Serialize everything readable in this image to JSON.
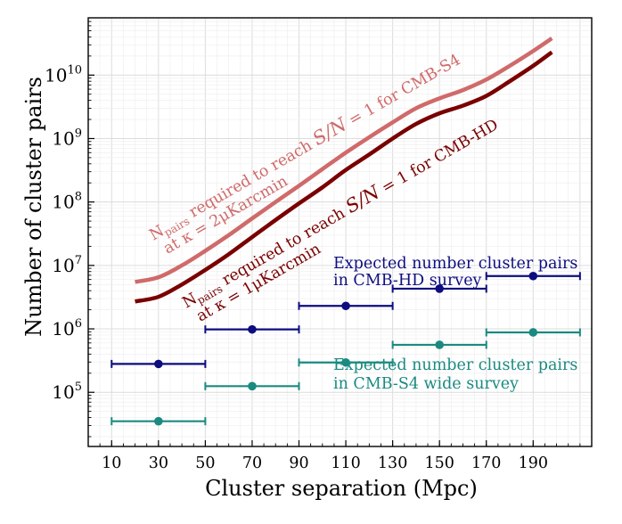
{
  "chart_data": {
    "type": "scatter",
    "title": "",
    "xlabel": "Cluster separation (Mpc)",
    "ylabel": "Number of cluster pairs",
    "x_scale": "linear",
    "y_scale": "log",
    "xlim": [
      0,
      215
    ],
    "ylim": [
      14000,
      80000000000
    ],
    "xticks": [
      10,
      30,
      50,
      70,
      90,
      110,
      130,
      150,
      170,
      190
    ],
    "yticks": [
      {
        "value": 100000,
        "base": "10",
        "exp": "5"
      },
      {
        "value": 1000000,
        "base": "10",
        "exp": "6"
      },
      {
        "value": 10000000,
        "base": "10",
        "exp": "7"
      },
      {
        "value": 100000000,
        "base": "10",
        "exp": "8"
      },
      {
        "value": 1000000000,
        "base": "10",
        "exp": "9"
      },
      {
        "value": 10000000000,
        "base": "10",
        "exp": "10"
      }
    ],
    "grid": true,
    "legend": "none",
    "curves": [
      {
        "id": "s4-curve",
        "color": "#d06a6a",
        "x": [
          20,
          30,
          40,
          50,
          60,
          70,
          80,
          90,
          100,
          110,
          120,
          130,
          140,
          150,
          160,
          170,
          180,
          190,
          198
        ],
        "y": [
          5500000,
          6500000,
          10000000,
          17000000,
          30000000,
          55000000,
          100000000,
          180000000,
          330000000,
          600000000,
          1050000000,
          1800000000,
          3000000000,
          4300000000,
          5800000000,
          8500000000,
          14000000000,
          24000000000,
          38000000000
        ]
      },
      {
        "id": "hd-curve",
        "color": "#7a0000",
        "x": [
          20,
          30,
          40,
          50,
          60,
          70,
          80,
          90,
          100,
          110,
          120,
          130,
          140,
          150,
          160,
          170,
          180,
          190,
          198
        ],
        "y": [
          2700000,
          3200000,
          5000000,
          8500000,
          15000000,
          28000000,
          52000000,
          95000000,
          170000000,
          320000000,
          560000000,
          1000000000,
          1700000000,
          2500000000,
          3300000000,
          4700000000,
          8000000000,
          14000000000,
          23000000000
        ]
      }
    ],
    "series": [
      {
        "id": "hd-points",
        "color": "#0d0d80",
        "x": [
          30,
          70,
          110,
          150,
          190
        ],
        "x_err": [
          20,
          20,
          20,
          20,
          20
        ],
        "y": [
          280000,
          980000,
          2300000,
          4300000,
          6800000
        ]
      },
      {
        "id": "s4-points",
        "color": "#1a8a80",
        "x": [
          30,
          70,
          110,
          150,
          190
        ],
        "x_err": [
          20,
          20,
          20,
          20,
          20
        ],
        "y": [
          35000,
          125000,
          295000,
          560000,
          880000
        ]
      }
    ],
    "annotations": [
      {
        "id": "s4-curve-label",
        "color": "#d06a6a",
        "rotation": -30,
        "line1": [
          "N",
          "pairs",
          " required to reach ",
          "S/N",
          " = 1 for CMB-S4"
        ],
        "line2": "at κ = 2μKarcmin"
      },
      {
        "id": "hd-curve-label",
        "color": "#7a0000",
        "rotation": -30,
        "line1": [
          "N",
          "pairs",
          " required to reach ",
          "S/N",
          " = 1 for CMB-HD"
        ],
        "line2": "at κ = 1μKarcmin"
      },
      {
        "id": "hd-points-label",
        "color": "#0d0d80",
        "lines": [
          "Expected number cluster pairs",
          "in CMB-HD survey"
        ]
      },
      {
        "id": "s4-points-label",
        "color": "#1a8a80",
        "lines": [
          "Expected number cluster pairs",
          "in CMB-S4 wide survey"
        ]
      }
    ]
  }
}
